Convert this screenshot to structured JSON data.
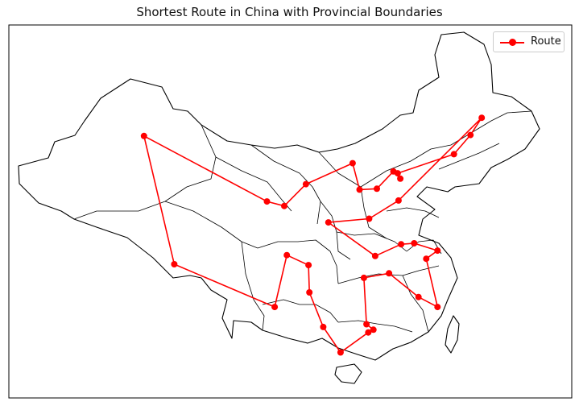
{
  "title": "Shortest Route in China with Provincial Boundaries",
  "legend": {
    "label": "Route",
    "color": "#ff0000"
  },
  "route": {
    "color": "#ff0000",
    "closed": true,
    "lon_range": [
      72,
      137
    ],
    "lat_range": [
      15,
      56
    ],
    "points": [
      [
        87.6,
        43.8
      ],
      [
        101.8,
        36.6
      ],
      [
        103.8,
        36.1
      ],
      [
        106.3,
        38.5
      ],
      [
        111.7,
        40.8
      ],
      [
        112.5,
        37.9
      ],
      [
        114.5,
        38.0
      ],
      [
        116.4,
        39.9
      ],
      [
        117.2,
        39.1
      ],
      [
        116.9,
        39.7
      ],
      [
        123.4,
        41.8
      ],
      [
        125.3,
        43.9
      ],
      [
        126.6,
        45.8
      ],
      [
        117.0,
        36.7
      ],
      [
        113.6,
        34.7
      ],
      [
        108.9,
        34.3
      ],
      [
        114.3,
        30.6
      ],
      [
        117.3,
        31.9
      ],
      [
        118.8,
        32.0
      ],
      [
        121.5,
        31.2
      ],
      [
        120.2,
        30.3
      ],
      [
        121.5,
        25.0
      ],
      [
        119.3,
        26.1
      ],
      [
        115.9,
        28.7
      ],
      [
        113.0,
        28.2
      ],
      [
        113.3,
        23.1
      ],
      [
        114.1,
        22.5
      ],
      [
        113.5,
        22.2
      ],
      [
        110.3,
        20.0
      ],
      [
        108.3,
        22.8
      ],
      [
        106.7,
        26.6
      ],
      [
        106.6,
        29.6
      ],
      [
        104.1,
        30.7
      ],
      [
        102.7,
        25.0
      ],
      [
        91.1,
        29.7
      ]
    ]
  }
}
